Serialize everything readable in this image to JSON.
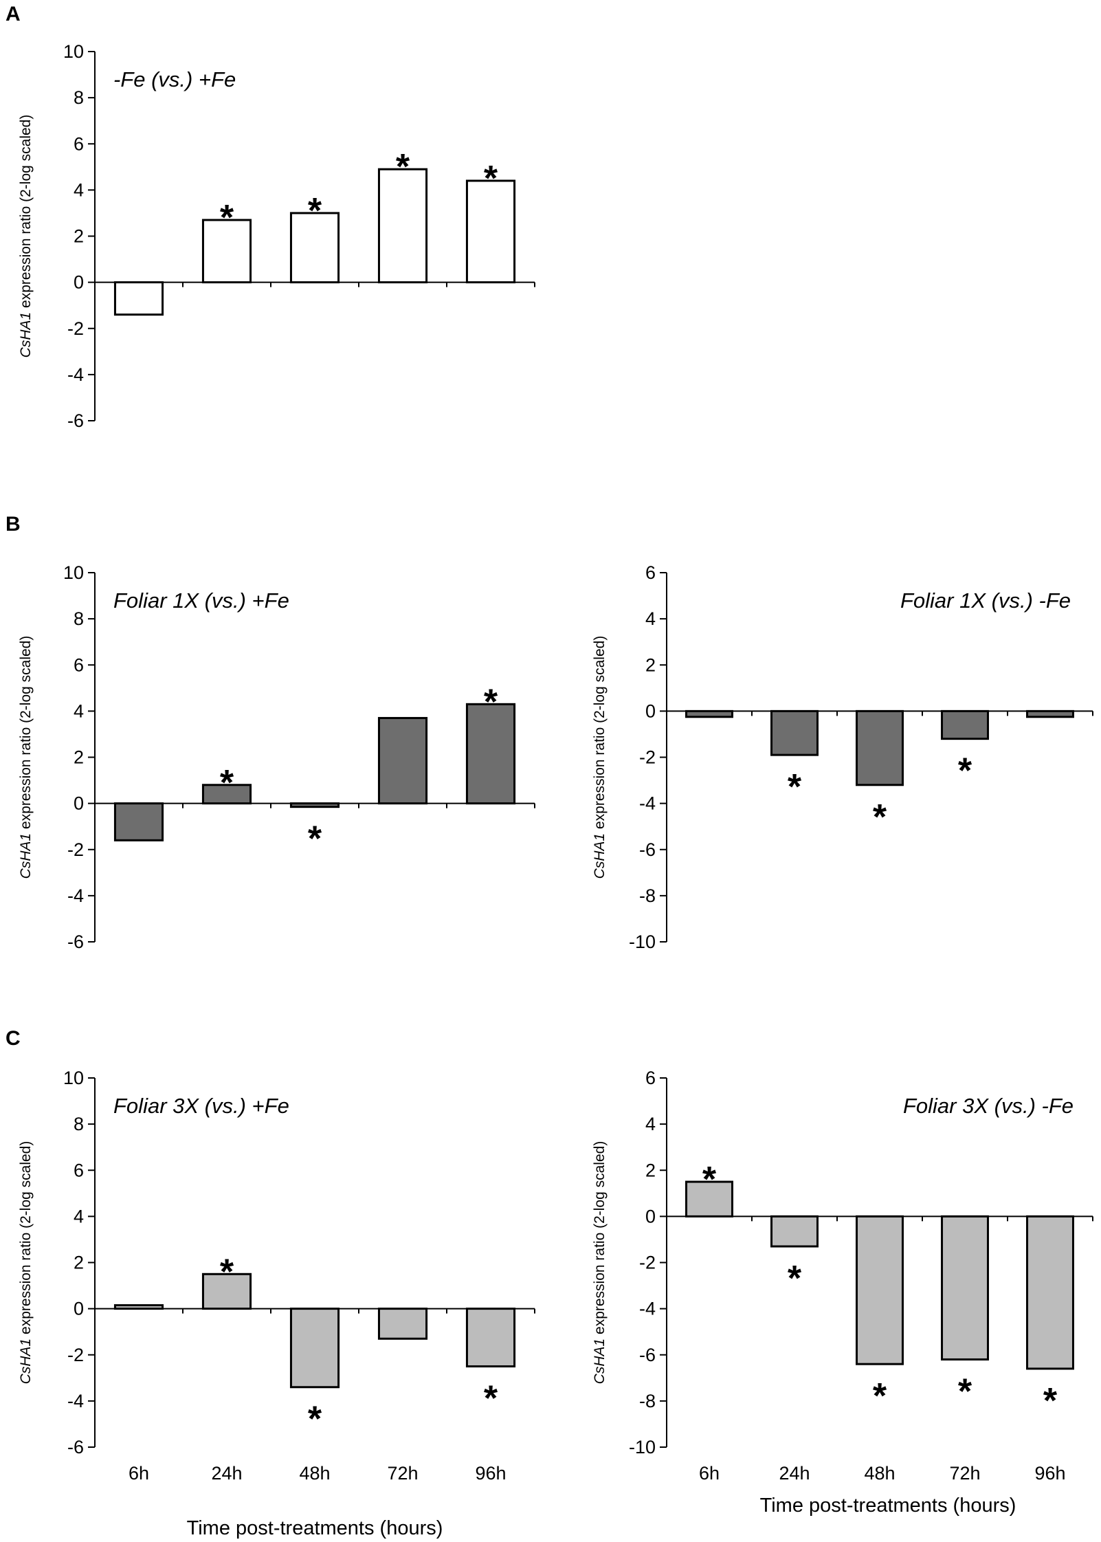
{
  "panel_letters": [
    "A",
    "B",
    "C"
  ],
  "colors": {
    "white_bar": "#ffffff",
    "dark_bar": "#6e6e6e",
    "light_bar": "#bcbcbc",
    "axis": "#000000"
  },
  "chart_data": [
    {
      "type": "bar",
      "panel": "A",
      "title": "-Fe (vs.) +Fe",
      "categories": [
        "6h",
        "24h",
        "48h",
        "72h",
        "96h"
      ],
      "values": [
        -1.4,
        2.7,
        3.0,
        4.9,
        4.4
      ],
      "significant": [
        false,
        true,
        true,
        true,
        true
      ],
      "ylabel_gene": "CsHA1",
      "ylabel_rest": " expression ratio (2-log scaled)",
      "xlabel": "",
      "ylim": [
        -6,
        10
      ],
      "yticks": [
        10,
        8,
        6,
        4,
        2,
        0,
        -2,
        -4,
        -6
      ],
      "bar_color": "#ffffff"
    },
    {
      "type": "bar",
      "panel": "B",
      "title": "Foliar 1X  (vs.) +Fe",
      "categories": [
        "6h",
        "24h",
        "48h",
        "72h",
        "96h"
      ],
      "values": [
        -1.6,
        0.8,
        -0.15,
        3.7,
        4.3
      ],
      "significant": [
        false,
        true,
        true,
        false,
        true
      ],
      "ylabel_gene": "CsHA1",
      "ylabel_rest": " expression ratio (2-log scaled)",
      "xlabel": "",
      "ylim": [
        -6,
        10
      ],
      "yticks": [
        10,
        8,
        6,
        4,
        2,
        0,
        -2,
        -4,
        -6
      ],
      "bar_color": "#6e6e6e"
    },
    {
      "type": "bar",
      "panel": "B",
      "title": "Foliar 1X (vs.) -Fe",
      "categories": [
        "6h",
        "24h",
        "48h",
        "72h",
        "96h"
      ],
      "values": [
        -0.25,
        -1.9,
        -3.2,
        -1.2,
        -0.25
      ],
      "significant": [
        false,
        true,
        true,
        true,
        false
      ],
      "ylabel_gene": "CsHA1",
      "ylabel_rest": " expression ratio (2-log scaled)",
      "xlabel": "",
      "ylim": [
        -10,
        6
      ],
      "yticks": [
        6,
        4,
        2,
        0,
        -2,
        -4,
        -6,
        -8,
        -10
      ],
      "bar_color": "#6e6e6e"
    },
    {
      "type": "bar",
      "panel": "C",
      "title": "Foliar 3X (vs.) +Fe",
      "categories": [
        "6h",
        "24h",
        "48h",
        "72h",
        "96h"
      ],
      "values": [
        0.15,
        1.5,
        -3.4,
        -1.3,
        -2.5
      ],
      "significant": [
        false,
        true,
        true,
        false,
        true
      ],
      "ylabel_gene": "CsHA1",
      "ylabel_rest": " expression ratio (2-log scaled)",
      "xlabel": "Time post-treatments (hours)",
      "ylim": [
        -6,
        10
      ],
      "yticks": [
        10,
        8,
        6,
        4,
        2,
        0,
        -2,
        -4,
        -6
      ],
      "bar_color": "#bcbcbc"
    },
    {
      "type": "bar",
      "panel": "C",
      "title": "Foliar 3X (vs.) -Fe",
      "categories": [
        "6h",
        "24h",
        "48h",
        "72h",
        "96h"
      ],
      "values": [
        1.5,
        -1.3,
        -6.4,
        -6.2,
        -6.6
      ],
      "significant": [
        true,
        true,
        true,
        true,
        true
      ],
      "ylabel_gene": "CsHA1",
      "ylabel_rest": " expression ratio (2-log scaled)",
      "xlabel": "Time post-treatments (hours)",
      "ylim": [
        -10,
        6
      ],
      "yticks": [
        6,
        4,
        2,
        0,
        -2,
        -4,
        -6,
        -8,
        -10
      ],
      "bar_color": "#bcbcbc"
    }
  ]
}
